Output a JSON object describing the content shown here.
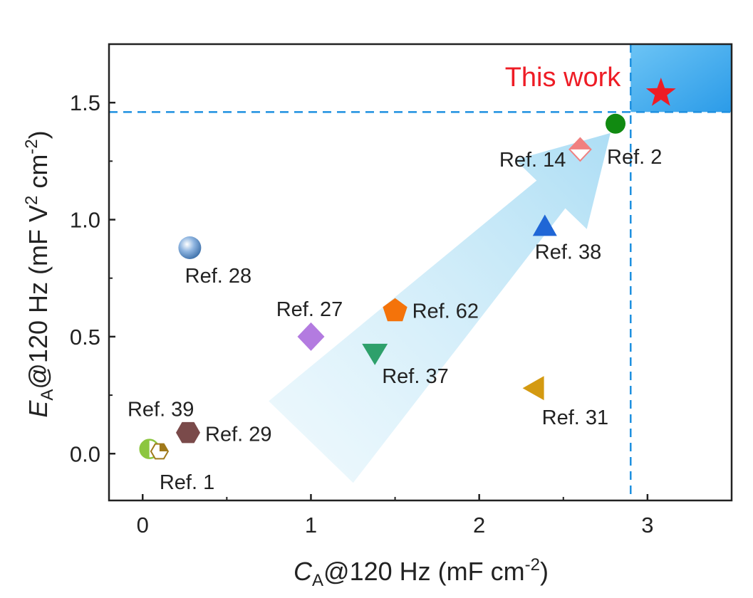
{
  "chart_data": {
    "type": "scatter",
    "xlabel": {
      "var": "C",
      "sub": "A",
      "rest": "@120 Hz (mF cm",
      "sup": "-2",
      "close": ")"
    },
    "ylabel": {
      "var": "E",
      "sub": "A",
      "rest": "@120 Hz (mF V",
      "sup1": "2",
      "mid": " cm",
      "sup2": "-2",
      "close": ")"
    },
    "xlim": [
      -0.2,
      3.5
    ],
    "ylim": [
      -0.2,
      1.75
    ],
    "xticks": [
      {
        "value": 0,
        "label": "0"
      },
      {
        "value": 1,
        "label": "1"
      },
      {
        "value": 2,
        "label": "2"
      },
      {
        "value": 3,
        "label": "3"
      }
    ],
    "yticks": [
      {
        "value": 0.0,
        "label": "0.0"
      },
      {
        "value": 0.5,
        "label": "0.5"
      },
      {
        "value": 1.0,
        "label": "1.0"
      },
      {
        "value": 1.5,
        "label": "1.5"
      }
    ],
    "grid": false,
    "threshold": {
      "x": 2.9,
      "y": 1.46,
      "color": "#1e90e0"
    },
    "highlight": {
      "label": "This work",
      "x": 3.08,
      "y": 1.54,
      "marker": "star",
      "color": "#ee1c25",
      "region_color": "#3aaaf0"
    },
    "trend_arrow": {
      "from": [
        1.0,
        0.05
      ],
      "to": [
        2.78,
        1.37
      ],
      "color": "#bfe6f7"
    },
    "points": [
      {
        "label": "Ref. 2",
        "x": 2.81,
        "y": 1.41,
        "marker": "circle",
        "color": "#118a11"
      },
      {
        "label": "Ref. 14",
        "x": 2.6,
        "y": 1.3,
        "marker": "diamond-half",
        "color": "#f08080"
      },
      {
        "label": "Ref. 38",
        "x": 2.39,
        "y": 0.97,
        "marker": "triangle-up",
        "color": "#1f66d6"
      },
      {
        "label": "Ref. 28",
        "x": 0.28,
        "y": 0.88,
        "marker": "sphere",
        "color": "#5b8ec9"
      },
      {
        "label": "Ref. 62",
        "x": 1.5,
        "y": 0.61,
        "marker": "pentagon",
        "color": "#f4730a"
      },
      {
        "label": "Ref. 27",
        "x": 1.0,
        "y": 0.5,
        "marker": "diamond",
        "color": "#b37be0"
      },
      {
        "label": "Ref. 37",
        "x": 1.38,
        "y": 0.43,
        "marker": "triangle-down",
        "color": "#2ea06b"
      },
      {
        "label": "Ref. 31",
        "x": 2.33,
        "y": 0.28,
        "marker": "triangle-left",
        "color": "#d49a11"
      },
      {
        "label": "Ref. 29",
        "x": 0.27,
        "y": 0.09,
        "marker": "hexagon",
        "color": "#7a4a4a"
      },
      {
        "label": "Ref. 39",
        "x": 0.04,
        "y": 0.02,
        "marker": "circle-half",
        "color": "#8cc63f"
      },
      {
        "label": "Ref. 1",
        "x": 0.1,
        "y": 0.01,
        "marker": "hexagon-half",
        "color": "#a0791a"
      }
    ]
  }
}
